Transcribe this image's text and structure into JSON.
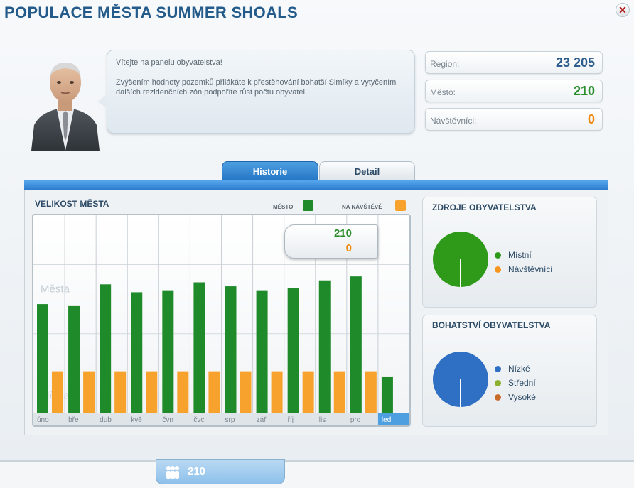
{
  "window": {
    "title": "POPULACE MĚSTA SUMMER SHOALS"
  },
  "advisor": {
    "greeting": "Vítejte na panelu obyvatelstva!",
    "message": "Zvýšením hodnoty pozemků přilákáte k přestěhování bohatší Simíky a vytyčením dalších rezidenčních zón podpoříte růst počtu obyvatel."
  },
  "stats": [
    {
      "label": "Region:",
      "value": "23 205",
      "color": "#2d5d8c"
    },
    {
      "label": "Město:",
      "value": "210",
      "color": "#2a8f2a"
    },
    {
      "label": "Návštěvníci:",
      "value": "0",
      "color": "#f08a10"
    }
  ],
  "tabs": {
    "active": "Historie",
    "inactive": "Detail"
  },
  "city_size": {
    "header": "VELIKOST MĚSTA",
    "legend_city": "MĚSTO",
    "legend_visitors": "NA NÁVŠTĚVĚ",
    "ghost_label": "Města",
    "tooltip": {
      "city": "210",
      "visitors": "0"
    }
  },
  "chart_data": {
    "type": "bar",
    "categories": [
      "úno",
      "bře",
      "dub",
      "kvě",
      "čvn",
      "čvc",
      "srp",
      "zář",
      "říj",
      "lis",
      "pro",
      "led"
    ],
    "highlighted_category": "led",
    "series": [
      {
        "name": "MĚSTO",
        "color": "#1f8a2a",
        "values": [
          0.55,
          0.54,
          0.65,
          0.61,
          0.62,
          0.66,
          0.64,
          0.62,
          0.63,
          0.67,
          0.69,
          0.18
        ]
      },
      {
        "name": "NA NÁVŠTĚVĚ",
        "color": "#f7a22c",
        "values": [
          0.21,
          0.21,
          0.21,
          0.21,
          0.21,
          0.21,
          0.21,
          0.21,
          0.21,
          0.21,
          0.21,
          0
        ]
      }
    ]
  },
  "sources": {
    "header": "ZDROJE OBYVATELSTVA",
    "items": [
      {
        "label": "Místní",
        "color": "#2f9a1a"
      },
      {
        "label": "Návštěvníci",
        "color": "#f7941d"
      }
    ],
    "pie_color": "#2f9a1a"
  },
  "wealth": {
    "header": "BOHATSTVÍ OBYVATELSTVA",
    "items": [
      {
        "label": "Nízké",
        "color": "#2f6fc4"
      },
      {
        "label": "Střední",
        "color": "#8cb030"
      },
      {
        "label": "Vysoké",
        "color": "#c86a2a"
      }
    ],
    "pie_color": "#2f6fc4"
  },
  "footer": {
    "population": "210"
  }
}
